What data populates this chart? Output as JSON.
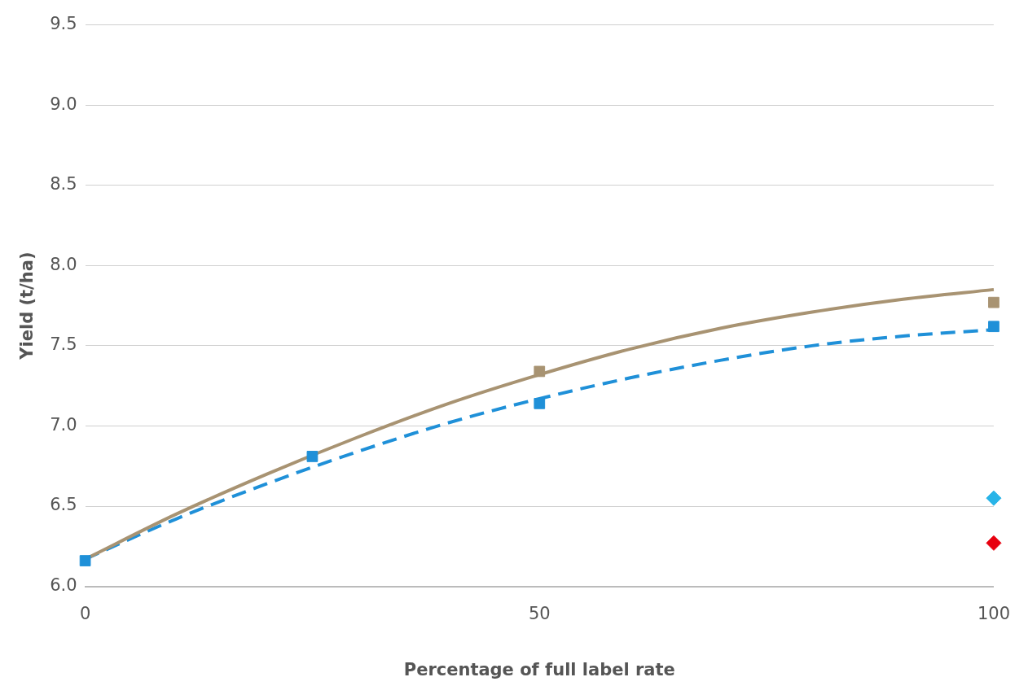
{
  "chart_data": {
    "type": "scatter",
    "xlabel": "Percentage of full label rate",
    "ylabel": "Yield (t/ha)",
    "xlim": [
      0,
      100
    ],
    "xticks": [
      0,
      50,
      100
    ],
    "ylim": [
      6.0,
      9.5
    ],
    "yticks": [
      {
        "value": 6.0,
        "label": "6.0"
      },
      {
        "value": 6.5,
        "label": "6.5"
      },
      {
        "value": 7.0,
        "label": "7.0"
      },
      {
        "value": 7.5,
        "label": "7.5"
      },
      {
        "value": 8.0,
        "label": "8.0"
      },
      {
        "value": 8.5,
        "label": "8.5"
      },
      {
        "value": 9.0,
        "label": "9.0"
      },
      {
        "value": 9.5,
        "label": "9.5"
      }
    ],
    "grid": "y",
    "legend": false,
    "series": [
      {
        "type": "line",
        "color": "#a89372",
        "line_style": "solid",
        "marker": "none",
        "x": [
          0,
          10,
          20,
          30,
          40,
          50,
          60,
          70,
          80,
          90,
          100
        ],
        "values": [
          6.17,
          6.45,
          6.7,
          6.93,
          7.14,
          7.32,
          7.48,
          7.61,
          7.71,
          7.79,
          7.85
        ]
      },
      {
        "type": "line",
        "color": "#1f90d8",
        "line_style": "dashed",
        "marker": "none",
        "x": [
          0,
          10,
          20,
          30,
          40,
          50,
          60,
          70,
          80,
          90,
          100
        ],
        "values": [
          6.17,
          6.42,
          6.64,
          6.84,
          7.02,
          7.17,
          7.3,
          7.41,
          7.5,
          7.56,
          7.6
        ]
      },
      {
        "type": "scatter",
        "color": "#a89372",
        "marker": "square",
        "x": [
          50,
          100
        ],
        "values": [
          7.34,
          7.77
        ]
      },
      {
        "type": "scatter",
        "color": "#1f90d8",
        "marker": "square",
        "x": [
          0,
          25,
          50,
          100
        ],
        "values": [
          6.16,
          6.81,
          7.14,
          7.62
        ]
      },
      {
        "type": "scatter",
        "color": "#28b4e8",
        "marker": "diamond",
        "x": [
          100
        ],
        "values": [
          6.55
        ]
      },
      {
        "type": "scatter",
        "color": "#e8000f",
        "marker": "diamond",
        "x": [
          100
        ],
        "values": [
          6.27
        ]
      }
    ]
  }
}
